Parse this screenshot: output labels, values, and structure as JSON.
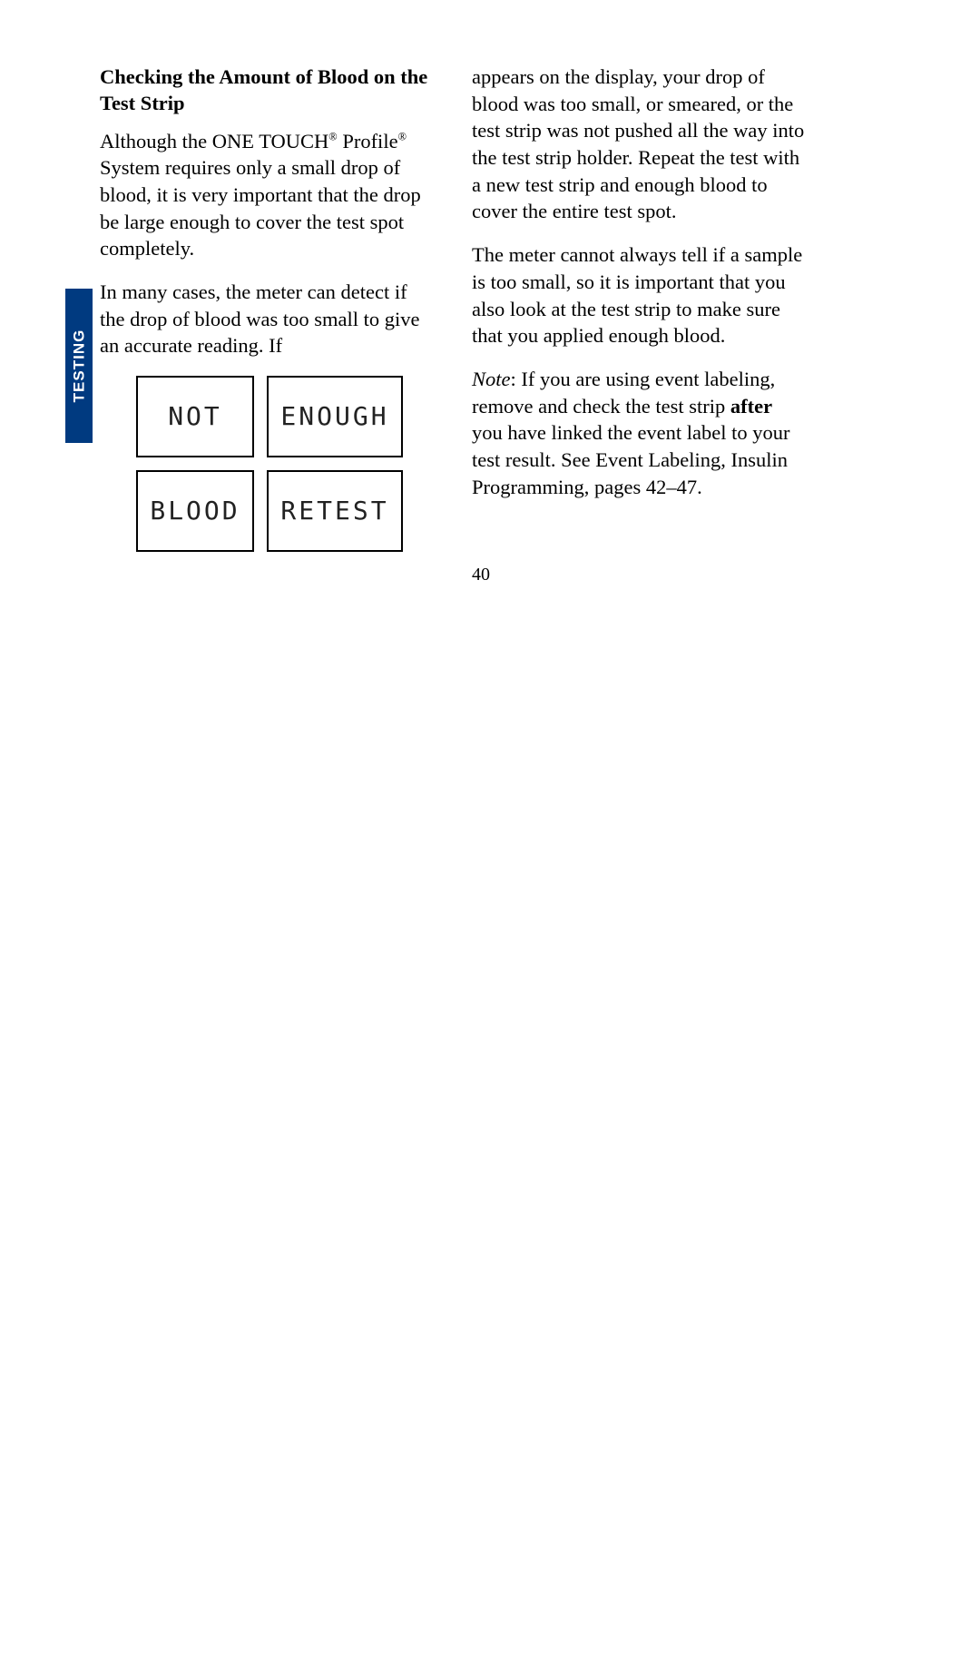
{
  "sideTab": {
    "label": "TESTING",
    "bg": "#003a80",
    "fg": "#ffffff"
  },
  "leftColumn": {
    "heading": "Checking the Amount of Blood on the Test Strip",
    "para1_pre": "Although the ONE TOUCH",
    "para1_mid": "Profile",
    "para1_post": " System requires only a small drop of blood, it is very important that the drop be large enough to cover the test spot completely.",
    "reg": "®",
    "para2": "In many cases, the meter can detect if the drop of blood was too small to give an accurate reading. If"
  },
  "lcd": {
    "cells": [
      "NOT",
      "ENOUGH",
      "BLOOD",
      "RETEST"
    ],
    "border": "#000000",
    "text": "#222222"
  },
  "rightColumn": {
    "para1": "appears on the display, your drop of blood was too small, or smeared, or the test strip was not pushed all the way into the test strip holder. Repeat the test with a new test strip and enough blood to cover the entire test spot.",
    "para2": "The meter cannot always tell if a sample is too small, so it is important that you also look at the test strip to make sure that you applied enough blood.",
    "note_label": "Note",
    "note_pre": ": If you are using event labeling, remove and check the test strip ",
    "note_bold": "after",
    "note_post": " you have linked the event label to your test result. See Event Labeling, Insulin Programming, pages 42–47."
  },
  "pageNumber": "40"
}
